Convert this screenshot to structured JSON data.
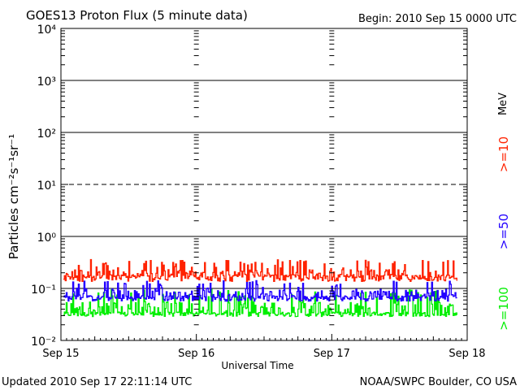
{
  "header": {
    "title": "GOES13 Proton Flux (5 minute data)",
    "begin": "Begin: 2010 Sep 15 0000 UTC"
  },
  "footer": {
    "updated": "Updated 2010 Sep 17 22:11:14 UTC",
    "source": "NOAA/SWPC Boulder, CO USA"
  },
  "chart_data": {
    "type": "line",
    "title": "GOES13 Proton Flux (5 minute data)",
    "xlabel": "Universal Time",
    "ylabel": "Particles cm⁻²s⁻¹sr⁻¹",
    "y_scale": "log",
    "ylim": [
      0.01,
      10000
    ],
    "y_ticks": [
      "10⁻²",
      "10⁻¹",
      "10⁰",
      "10¹",
      "10²",
      "10³",
      "10⁴"
    ],
    "x_ticks": [
      "Sep 15",
      "Sep 16",
      "Sep 17",
      "Sep 18"
    ],
    "xlim": [
      "2010-09-15 00:00",
      "2010-09-18 00:00"
    ],
    "data_end": "2010-09-17 22:10",
    "right_label_unit": "MeV",
    "colors": {
      ">=10": "#ff2200",
      ">=50": "#2200ff",
      ">=100": "#00ee00"
    },
    "series": [
      {
        "name": ">=10",
        "color": "#ff2200",
        "base": 0.16,
        "typical_range": [
          0.1,
          0.3
        ]
      },
      {
        "name": ">=50",
        "color": "#2200ff",
        "base": 0.065,
        "typical_range": [
          0.045,
          0.12
        ]
      },
      {
        "name": ">=100",
        "color": "#00ee00",
        "base": 0.032,
        "typical_range": [
          0.024,
          0.08
        ]
      }
    ]
  }
}
